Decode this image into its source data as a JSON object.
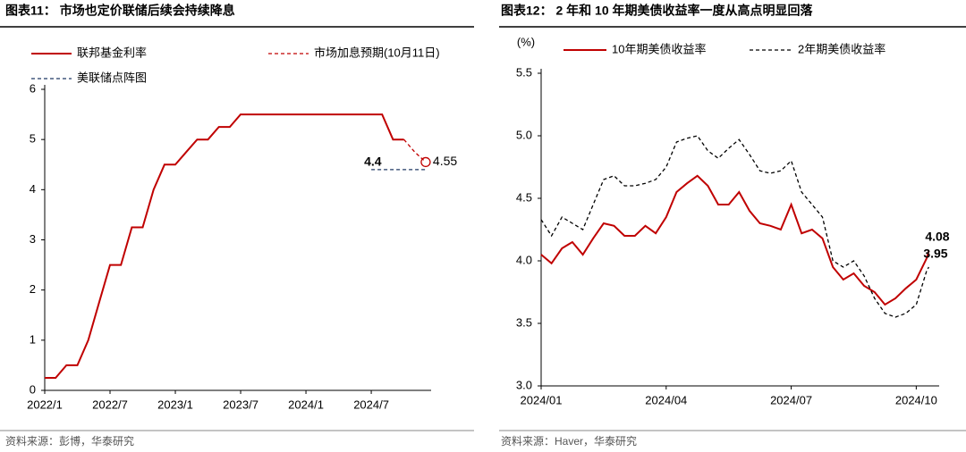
{
  "chart_data": [
    {
      "type": "line",
      "title": "图表11： 市场也定价联储后续会持续降息",
      "source": "资料来源：彭博，华泰研究",
      "xlim": [
        0,
        35.5
      ],
      "xticks": [
        {
          "value": 0,
          "label": "2022/1"
        },
        {
          "value": 6,
          "label": "2022/7"
        },
        {
          "value": 12,
          "label": "2023/1"
        },
        {
          "value": 18,
          "label": "2023/7"
        },
        {
          "value": 24,
          "label": "2024/1"
        },
        {
          "value": 30,
          "label": "2024/7"
        }
      ],
      "ylim": [
        0,
        6
      ],
      "yticks": [
        0,
        1,
        2,
        3,
        4,
        5,
        6
      ],
      "grid": false,
      "series": [
        {
          "name": "联邦基金利率",
          "color": "#c00000",
          "dash": "solid",
          "x": [
            0,
            1,
            2,
            3,
            4,
            5,
            6,
            7,
            8,
            9,
            10,
            11,
            12,
            13,
            14,
            15,
            16,
            17,
            18,
            19,
            20,
            21,
            22,
            23,
            24,
            25,
            26,
            27,
            28,
            29,
            30,
            31,
            32,
            33
          ],
          "values": [
            0.25,
            0.25,
            0.5,
            0.5,
            1.0,
            1.75,
            2.5,
            2.5,
            3.25,
            3.25,
            4.0,
            4.5,
            4.5,
            4.75,
            5.0,
            5.0,
            5.25,
            5.25,
            5.5,
            5.5,
            5.5,
            5.5,
            5.5,
            5.5,
            5.5,
            5.5,
            5.5,
            5.5,
            5.5,
            5.5,
            5.5,
            5.5,
            5.0,
            5.0
          ]
        },
        {
          "name": "市场加息预期(10月11日)",
          "color": "#c00000",
          "dash": "dashed",
          "label": "last",
          "end_marker": "circle",
          "x": [
            33,
            34,
            35
          ],
          "values": [
            5.0,
            4.75,
            4.55
          ]
        },
        {
          "name": "美联储点阵图",
          "color": "#1f3864",
          "dash": "dashed",
          "label": "first",
          "label_bold": true,
          "x": [
            30,
            35
          ],
          "values": [
            4.4,
            4.4
          ]
        }
      ]
    },
    {
      "type": "line",
      "title": "图表12： 2 年和 10 年期美债收益率一度从高点明显回落",
      "source": "资料来源：Haver，华泰研究",
      "y_label": "(%)",
      "xlim": [
        1,
        10.55
      ],
      "xticks": [
        {
          "value": 1,
          "label": "2024/01"
        },
        {
          "value": 4,
          "label": "2024/04"
        },
        {
          "value": 7,
          "label": "2024/07"
        },
        {
          "value": 10,
          "label": "2024/10"
        }
      ],
      "ylim": [
        3.0,
        5.5
      ],
      "yticks": [
        {
          "value": 3.0,
          "label": "3.0"
        },
        {
          "value": 3.5,
          "label": "3.5"
        },
        {
          "value": 4.0,
          "label": "4.0"
        },
        {
          "value": 4.5,
          "label": "4.5"
        },
        {
          "value": 5.0,
          "label": "5.0"
        },
        {
          "value": 5.5,
          "label": "5.5"
        }
      ],
      "grid": false,
      "series": [
        {
          "name": "10年期美债收益率",
          "color": "#c00000",
          "dash": "solid",
          "label": "last",
          "label_bold": true,
          "x": [
            1,
            1.25,
            1.5,
            1.75,
            2,
            2.25,
            2.5,
            2.75,
            3,
            3.25,
            3.5,
            3.75,
            4,
            4.25,
            4.5,
            4.75,
            5,
            5.25,
            5.5,
            5.75,
            6,
            6.25,
            6.5,
            6.75,
            7,
            7.25,
            7.5,
            7.75,
            8,
            8.25,
            8.5,
            8.75,
            9,
            9.25,
            9.5,
            9.75,
            10,
            10.25,
            10.3
          ],
          "values": [
            4.05,
            3.98,
            4.1,
            4.15,
            4.05,
            4.18,
            4.3,
            4.28,
            4.2,
            4.2,
            4.28,
            4.22,
            4.35,
            4.55,
            4.62,
            4.68,
            4.6,
            4.45,
            4.45,
            4.55,
            4.4,
            4.3,
            4.28,
            4.25,
            4.45,
            4.22,
            4.25,
            4.18,
            3.95,
            3.85,
            3.9,
            3.8,
            3.75,
            3.65,
            3.7,
            3.78,
            3.85,
            4.02,
            4.08
          ]
        },
        {
          "name": "2年期美债收益率",
          "color": "#000000",
          "dash": "dashed",
          "label": "last",
          "label_bold": true,
          "x": [
            1,
            1.25,
            1.5,
            1.75,
            2,
            2.25,
            2.5,
            2.75,
            3,
            3.25,
            3.5,
            3.75,
            4,
            4.25,
            4.5,
            4.75,
            5,
            5.25,
            5.5,
            5.75,
            6,
            6.25,
            6.5,
            6.75,
            7,
            7.25,
            7.5,
            7.75,
            8,
            8.25,
            8.5,
            8.75,
            9,
            9.25,
            9.5,
            9.75,
            10,
            10.25,
            10.3
          ],
          "values": [
            4.33,
            4.2,
            4.35,
            4.3,
            4.25,
            4.45,
            4.65,
            4.68,
            4.6,
            4.6,
            4.62,
            4.65,
            4.75,
            4.95,
            4.98,
            5.0,
            4.88,
            4.82,
            4.9,
            4.97,
            4.85,
            4.72,
            4.7,
            4.72,
            4.8,
            4.55,
            4.45,
            4.35,
            4.0,
            3.95,
            4.0,
            3.88,
            3.7,
            3.58,
            3.55,
            3.58,
            3.65,
            3.92,
            3.95
          ]
        }
      ]
    }
  ]
}
